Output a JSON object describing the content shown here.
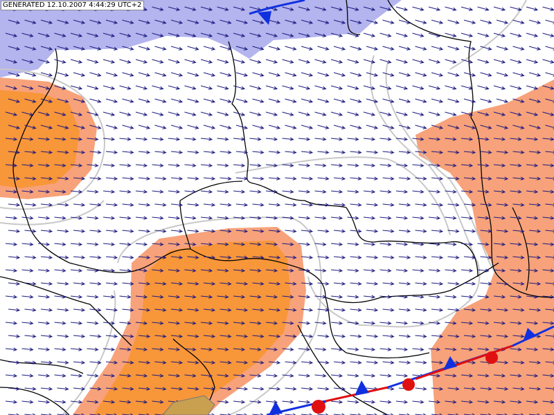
{
  "header": {
    "label": "GENERATED 12.10.2007 4:44:29 UTC+2"
  }
}
